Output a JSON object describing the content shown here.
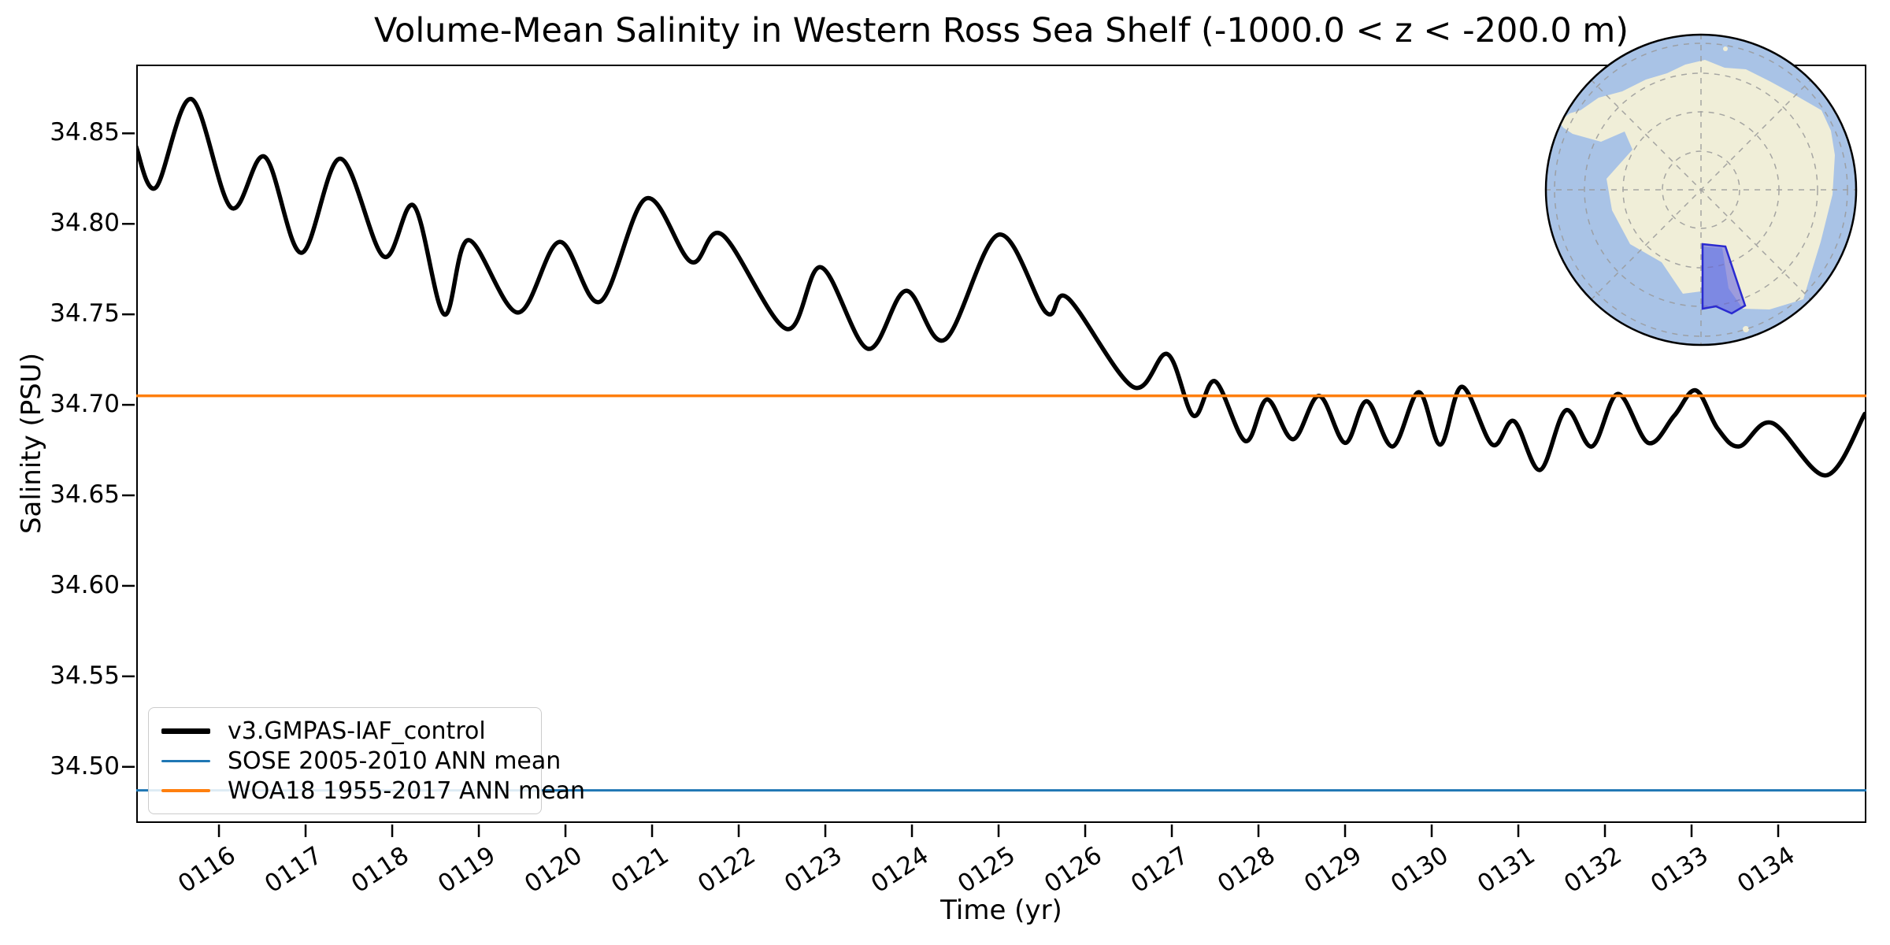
{
  "chart_data": {
    "type": "line",
    "title": "Volume-Mean Salinity in Western Ross Sea Shelf (-1000.0 < z < -200.0 m)",
    "xlabel": "Time (yr)",
    "ylabel": "Salinity (PSU)",
    "xlim": [
      115.045,
      135.018
    ],
    "ylim": [
      34.469,
      34.888
    ],
    "grid": false,
    "legend_position": "lower left",
    "x_ticks": [
      "0116",
      "0117",
      "0118",
      "0119",
      "0120",
      "0121",
      "0122",
      "0123",
      "0124",
      "0125",
      "0126",
      "0127",
      "0128",
      "0129",
      "0130",
      "0131",
      "0132",
      "0133",
      "0134"
    ],
    "y_ticks": [
      "34.50",
      "34.55",
      "34.60",
      "34.65",
      "34.70",
      "34.75",
      "34.80",
      "34.85"
    ],
    "series": [
      {
        "name": "v3.GMPAS-IAF_control",
        "kind": "curve",
        "color": "#000000",
        "linewidth": 5.5,
        "x": [
          115.04,
          115.27,
          115.68,
          116.14,
          116.53,
          116.95,
          117.4,
          117.9,
          118.25,
          118.6,
          118.88,
          119.45,
          119.93,
          120.4,
          120.93,
          121.45,
          121.81,
          122.55,
          122.95,
          123.49,
          123.93,
          124.38,
          125.0,
          125.55,
          125.8,
          126.55,
          126.95,
          127.25,
          127.5,
          127.85,
          128.1,
          128.4,
          128.7,
          129.0,
          129.25,
          129.55,
          129.85,
          130.1,
          130.35,
          130.7,
          130.95,
          131.25,
          131.55,
          131.85,
          132.15,
          132.5,
          132.8,
          133.05,
          133.3,
          133.55,
          133.93,
          134.55,
          135.0
        ],
        "y": [
          34.843,
          34.82,
          34.869,
          34.809,
          34.837,
          34.784,
          34.836,
          34.782,
          34.81,
          34.75,
          34.791,
          34.751,
          34.79,
          34.757,
          34.814,
          34.779,
          34.794,
          34.742,
          34.776,
          34.731,
          34.763,
          34.736,
          34.794,
          34.751,
          34.759,
          34.71,
          34.728,
          34.694,
          34.713,
          34.68,
          34.703,
          34.681,
          34.705,
          34.679,
          34.702,
          34.677,
          34.707,
          34.678,
          34.71,
          34.678,
          34.691,
          34.664,
          34.697,
          34.677,
          34.706,
          34.679,
          34.694,
          34.708,
          34.687,
          34.677,
          34.69,
          34.661,
          34.695
        ]
      },
      {
        "name": "SOSE 2005-2010 ANN mean",
        "kind": "hline",
        "color": "#1f77b4",
        "linewidth": 3,
        "value": 34.487
      },
      {
        "name": "WOA18 1955-2017 ANN mean",
        "kind": "hline",
        "color": "#ff7f0e",
        "linewidth": 3.5,
        "value": 34.705
      }
    ]
  },
  "inset_map": {
    "ocean_color": "#a9c3e6",
    "land_color": "#f0eed8",
    "graticule_color": "#999999",
    "edge_color": "#000000",
    "highlight_fill": "#5a5ae0",
    "highlight_edge": "#2a2ad0",
    "highlight_opacity": "0.55"
  }
}
